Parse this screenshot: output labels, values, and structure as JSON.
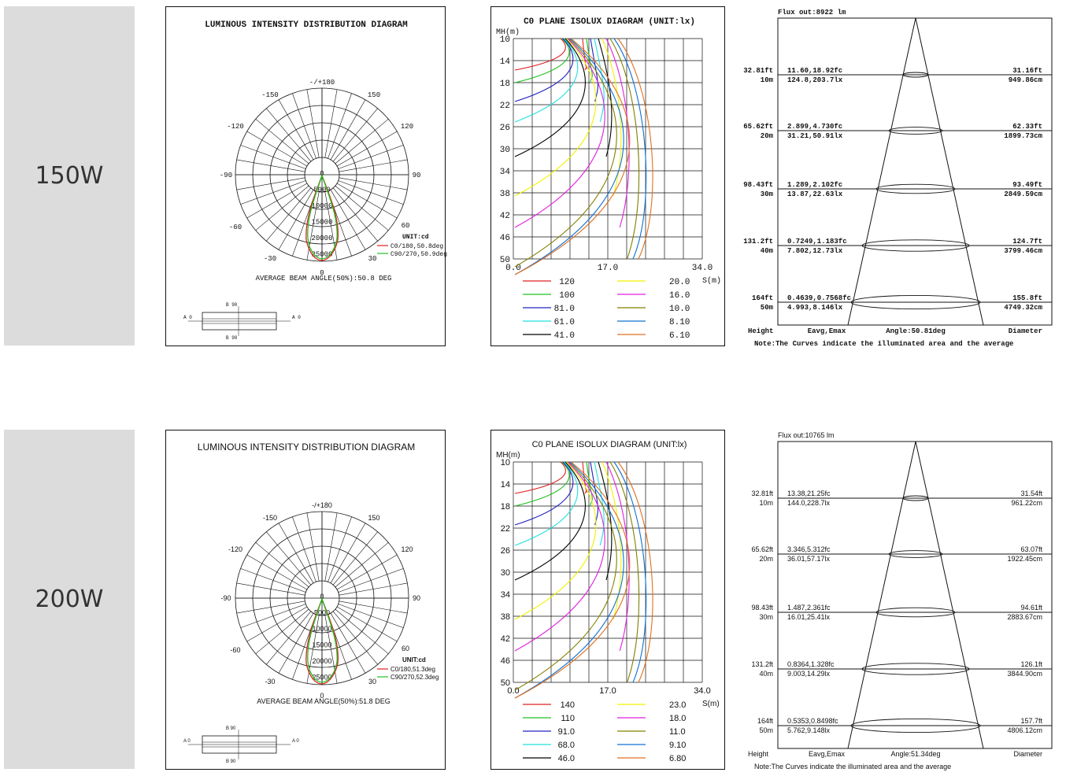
{
  "rows": [
    {
      "power": "150W",
      "font": "mono",
      "polar": {
        "title": "LUMINOUS INTENSITY DISTRIBUTION DIAGRAM",
        "angles": {
          "top": "-/+180",
          "a150l": "-150",
          "a150r": "150",
          "a120l": "-120",
          "a120r": "120",
          "a90l": "-90",
          "a90r": "90",
          "a60l": "-60",
          "a60r": "60",
          "a30l": "-30",
          "a30r": "30",
          "a0": "0"
        },
        "rings": [
          "0",
          "5000",
          "10000",
          "15000",
          "20000",
          "25000"
        ],
        "unit": "UNIT:cd",
        "legend": [
          {
            "label": "C0/180,50.8deg",
            "color": "#e02020"
          },
          {
            "label": "C90/270,50.9deg",
            "color": "#20c020"
          }
        ],
        "beam": "AVERAGE BEAM ANGLE(50%):50.8 DEG",
        "lamp": {
          "a0": "A 0",
          "b90": "B 90"
        }
      },
      "isolux": {
        "title": "C0 PLANE ISOLUX DIAGRAM (UNIT:lx)",
        "y_label": "MH(m)",
        "x_label": "S(m)",
        "y_ticks": [
          "10",
          "14",
          "18",
          "22",
          "26",
          "30",
          "34",
          "38",
          "42",
          "46",
          "50"
        ],
        "x_ticks": [
          "0.0",
          "17.0",
          "34.0"
        ],
        "legend": [
          {
            "value": "120",
            "color": "#e02020"
          },
          {
            "value": "20.0",
            "color": "#f2f200"
          },
          {
            "value": "100",
            "color": "#20c020"
          },
          {
            "value": "16.0",
            "color": "#e020e0"
          },
          {
            "value": "81.0",
            "color": "#2020c0"
          },
          {
            "value": "10.0",
            "color": "#808000"
          },
          {
            "value": "61.0",
            "color": "#20e0e0"
          },
          {
            "value": "8.10",
            "color": "#1070d0"
          },
          {
            "value": "41.0",
            "color": "#000000"
          },
          {
            "value": "6.10",
            "color": "#e07020"
          }
        ]
      },
      "cone": {
        "flux": "Flux out:8922 lm",
        "levels": [
          {
            "ft": "32.81ft",
            "m": "10m",
            "fc": "11.60,18.92fc",
            "lx": "124.8,203.7lx",
            "dft": "31.16ft",
            "dcm": "949.86cm"
          },
          {
            "ft": "65.62ft",
            "m": "20m",
            "fc": "2.899,4.730fc",
            "lx": "31.21,50.91lx",
            "dft": "62.33ft",
            "dcm": "1899.73cm"
          },
          {
            "ft": "98.43ft",
            "m": "30m",
            "fc": "1.289,2.102fc",
            "lx": "13.87,22.63lx",
            "dft": "93.49ft",
            "dcm": "2849.59cm"
          },
          {
            "ft": "131.2ft",
            "m": "40m",
            "fc": "0.7249,1.183fc",
            "lx": "7.802,12.73lx",
            "dft": "124.7ft",
            "dcm": "3799.46cm"
          },
          {
            "ft": "164ft",
            "m": "50m",
            "fc": "0.4639,0.7568fc",
            "lx": "4.993,8.146lx",
            "dft": "155.8ft",
            "dcm": "4749.32cm"
          }
        ],
        "footer": {
          "height": "Height",
          "eavg": "Eavg,Emax",
          "angle": "Angle:50.81deg",
          "diameter": "Diameter"
        },
        "note": "Note:The Curves indicate the illuminated area and the average"
      }
    },
    {
      "power": "200W",
      "font": "sans",
      "polar": {
        "title": "LUMINOUS INTENSITY DISTRIBUTION DIAGRAM",
        "angles": {
          "top": "-/+180",
          "a150l": "-150",
          "a150r": "150",
          "a120l": "-120",
          "a120r": "120",
          "a90l": "-90",
          "a90r": "90",
          "a60l": "-60",
          "a60r": "60",
          "a30l": "-30",
          "a30r": "30",
          "a0": "0"
        },
        "rings": [
          "0",
          "5000",
          "10000",
          "15000",
          "20000",
          "25000"
        ],
        "unit": "UNIT:cd",
        "legend": [
          {
            "label": "C0/180,51.3deg",
            "color": "#e02020"
          },
          {
            "label": "C90/270,52.3deg",
            "color": "#20c020"
          }
        ],
        "beam": "AVERAGE BEAM ANGLE(50%):51.8 DEG",
        "lamp": {
          "a0": "A 0",
          "b90": "B 90"
        }
      },
      "isolux": {
        "title": "C0 PLANE ISOLUX DIAGRAM (UNIT:lx)",
        "y_label": "MH(m)",
        "x_label": "S(m)",
        "y_ticks": [
          "10",
          "14",
          "18",
          "22",
          "26",
          "30",
          "34",
          "38",
          "42",
          "46",
          "50"
        ],
        "x_ticks": [
          "0.0",
          "17.0",
          "34.0"
        ],
        "legend": [
          {
            "value": "140",
            "color": "#e02020"
          },
          {
            "value": "23.0",
            "color": "#f2f200"
          },
          {
            "value": "110",
            "color": "#20c020"
          },
          {
            "value": "18.0",
            "color": "#e020e0"
          },
          {
            "value": "91.0",
            "color": "#2020c0"
          },
          {
            "value": "11.0",
            "color": "#808000"
          },
          {
            "value": "68.0",
            "color": "#20e0e0"
          },
          {
            "value": "9.10",
            "color": "#1070d0"
          },
          {
            "value": "46.0",
            "color": "#000000"
          },
          {
            "value": "6.80",
            "color": "#e07020"
          }
        ]
      },
      "cone": {
        "flux": "Flux out:10765 lm",
        "levels": [
          {
            "ft": "32.81ft",
            "m": "10m",
            "fc": "13.38,21.25fc",
            "lx": "144.0,228.7lx",
            "dft": "31.54ft",
            "dcm": "961.22cm"
          },
          {
            "ft": "65.62ft",
            "m": "20m",
            "fc": "3.346,5.312fc",
            "lx": "36.01,57.17lx",
            "dft": "63.07ft",
            "dcm": "1922.45cm"
          },
          {
            "ft": "98.43ft",
            "m": "30m",
            "fc": "1.487,2.361fc",
            "lx": "16.01,25.41lx",
            "dft": "94.61ft",
            "dcm": "2883.67cm"
          },
          {
            "ft": "131.2ft",
            "m": "40m",
            "fc": "0.8364,1.328fc",
            "lx": "9.003,14.29lx",
            "dft": "126.1ft",
            "dcm": "3844.90cm"
          },
          {
            "ft": "164ft",
            "m": "50m",
            "fc": "0.5353,0.8498fc",
            "lx": "5.762,9.148lx",
            "dft": "157.7ft",
            "dcm": "4806.12cm"
          }
        ],
        "footer": {
          "height": "Height",
          "eavg": "Eavg,Emax",
          "angle": "Angle:51.34deg",
          "diameter": "Diameter"
        },
        "note": "Note:The Curves indicate the illuminated area and the average"
      }
    }
  ]
}
